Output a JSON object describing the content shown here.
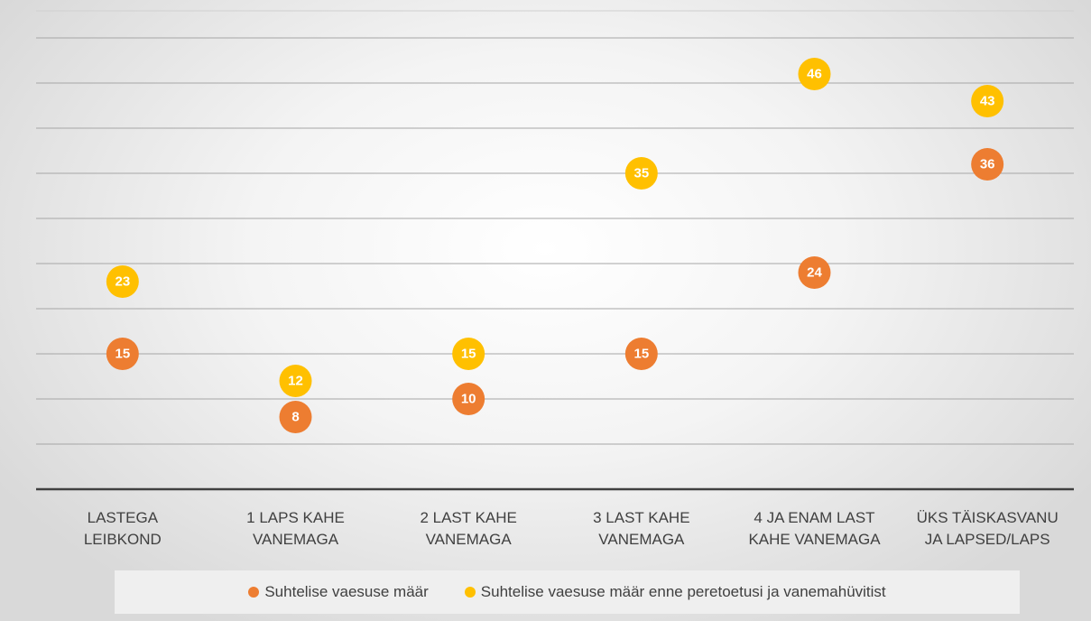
{
  "chart_data": {
    "type": "dot",
    "categories": [
      "LASTEGA\nLEIBKOND",
      "1 LAPS KAHE\nVANEMAGA",
      "2 LAST KAHE\nVANEMAGA",
      "3 LAST KAHE\nVANEMAGA",
      "4 JA ENAM LAST\nKAHE VANEMAGA",
      "ÜKS TÄISKASVANU\nJA LAPSED/LAPS"
    ],
    "series": [
      {
        "name": "Suhtelise vaesuse määr",
        "color": "#ed7d31",
        "values": [
          15,
          8,
          10,
          15,
          24,
          36
        ]
      },
      {
        "name": "Suhtelise vaesuse määr enne peretoetusi ja vanemahüvitist",
        "color": "#ffc000",
        "values": [
          23,
          12,
          15,
          35,
          46,
          43
        ]
      }
    ],
    "ylim": [
      0,
      53
    ],
    "yticks": [
      5,
      10,
      15,
      20,
      25,
      30,
      35,
      40,
      45,
      50
    ],
    "grid": true,
    "legend": "bottom"
  }
}
